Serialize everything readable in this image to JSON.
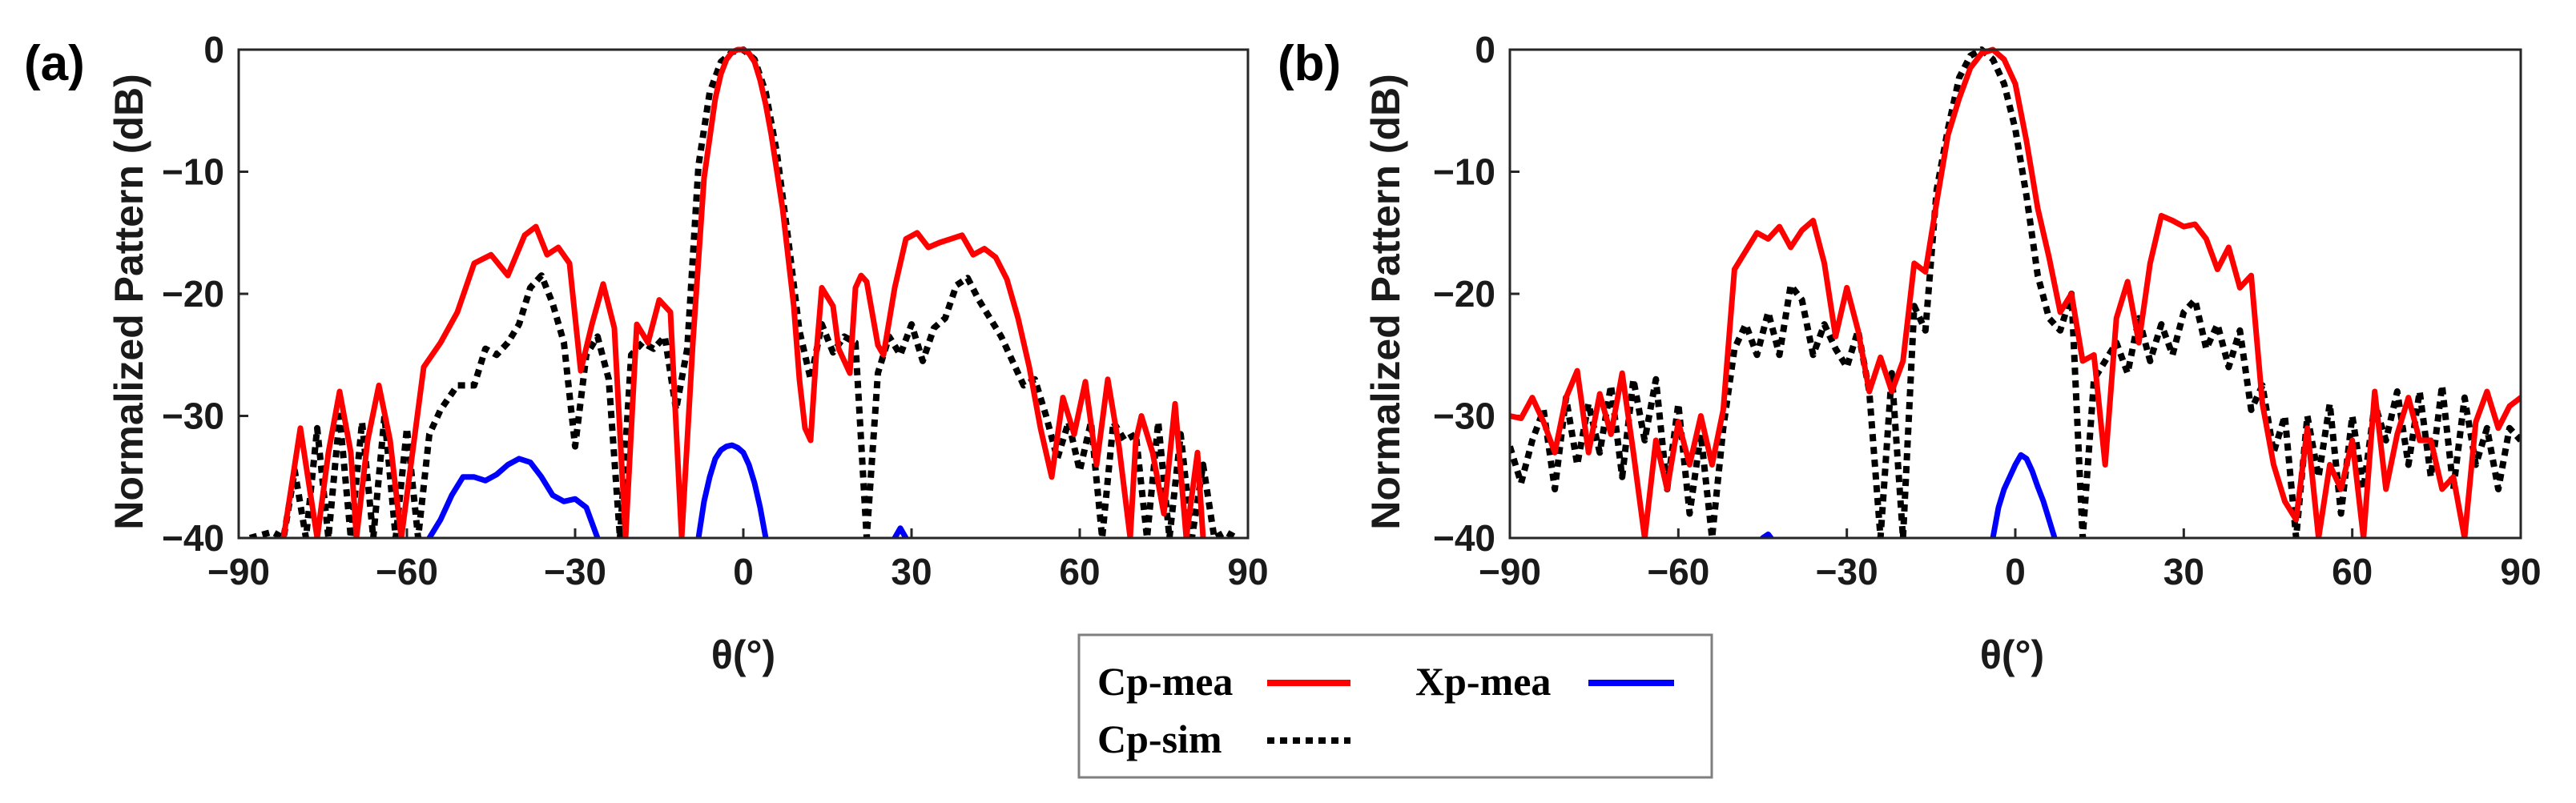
{
  "chart_data": [
    {
      "type": "line",
      "panel_label": "(a)",
      "xlabel": "θ(°)",
      "ylabel": "Normalized Pattern (dB)",
      "xlim": [
        -90,
        90
      ],
      "ylim": [
        -40,
        0
      ],
      "xticks": [
        -90,
        -60,
        -30,
        0,
        30,
        60,
        90
      ],
      "xtick_labels": [
        "−90",
        "−60",
        "−30",
        "0",
        "30",
        "60",
        "90"
      ],
      "yticks": [
        0,
        -10,
        -20,
        -30,
        -40
      ],
      "ytick_labels": [
        "0",
        "−10",
        "−20",
        "−30",
        "−40"
      ],
      "series": [
        {
          "name": "Cp-mea",
          "style": "solid",
          "color": "#ff0000",
          "x": [
            -82,
            -79,
            -76,
            -74,
            -72,
            -70,
            -69,
            -67,
            -65,
            -63,
            -61,
            -59,
            -57,
            -54,
            -51,
            -48,
            -45,
            -42,
            -39,
            -37,
            -35,
            -33,
            -31,
            -29,
            -27,
            -25,
            -23,
            -21,
            -19,
            -17,
            -15,
            -13,
            -11,
            -9,
            -7,
            -5,
            -4,
            -3,
            -2,
            -1,
            0,
            1,
            2,
            3,
            4,
            5,
            6,
            7,
            8,
            9,
            10,
            11,
            12,
            13,
            14,
            16,
            17,
            19,
            20,
            21,
            22,
            24,
            25,
            27,
            29,
            31,
            33,
            35,
            37,
            39,
            41,
            43,
            45,
            47,
            49,
            51,
            53,
            55,
            57,
            59,
            61,
            63,
            65,
            67,
            69,
            70,
            71,
            73,
            75,
            77,
            79,
            81,
            82
          ],
          "y": [
            -40,
            -31,
            -40,
            -33,
            -28,
            -33,
            -40,
            -32,
            -27.5,
            -32,
            -40,
            -33,
            -26,
            -24,
            -21.5,
            -17.5,
            -16.8,
            -18.5,
            -15.2,
            -14.5,
            -16.8,
            -16.2,
            -17.5,
            -26.3,
            -22.5,
            -19.2,
            -22.8,
            -40,
            -22.5,
            -24,
            -20.5,
            -21.5,
            -40,
            -24,
            -10.5,
            -4,
            -2,
            -0.8,
            -0.2,
            0,
            0,
            -0.3,
            -1,
            -2.5,
            -4.5,
            -7,
            -10,
            -13,
            -17,
            -21,
            -27,
            -31,
            -32,
            -25,
            -19.5,
            -21,
            -24.5,
            -26.5,
            -19.5,
            -18.5,
            -19,
            -24.2,
            -25,
            -19.5,
            -15.5,
            -15,
            -16.2,
            -15.8,
            -15.5,
            -15.2,
            -16.8,
            -16.3,
            -17,
            -18.8,
            -22,
            -26,
            -31,
            -35,
            -28.5,
            -31.5,
            -27.2,
            -34,
            -27,
            -32.5,
            -40,
            -32,
            -30,
            -33,
            -38,
            -29,
            -40,
            -33,
            -40
          ]
        },
        {
          "name": "Cp-sim",
          "style": "dotted",
          "color": "#000000",
          "x": [
            -88,
            -84,
            -82,
            -80,
            -78,
            -76,
            -74,
            -72,
            -70,
            -68,
            -66,
            -64,
            -62,
            -60,
            -58,
            -56,
            -54,
            -51,
            -48,
            -46,
            -44,
            -42,
            -40,
            -38,
            -36,
            -34,
            -32,
            -30,
            -28,
            -26,
            -24,
            -22,
            -20,
            -18,
            -16,
            -14,
            -12,
            -10,
            -8,
            -6,
            -4,
            -2,
            0,
            2,
            4,
            6,
            8,
            10,
            12,
            14,
            16,
            18,
            20,
            22,
            24,
            26,
            28,
            30,
            32,
            34,
            36,
            38,
            40,
            42,
            44,
            46,
            48,
            50,
            52,
            54,
            56,
            58,
            60,
            62,
            64,
            66,
            68,
            70,
            72,
            74,
            76,
            78,
            80,
            82,
            84,
            86,
            88
          ],
          "y": [
            -40,
            -39.5,
            -40,
            -34.5,
            -40,
            -31,
            -40,
            -30,
            -40,
            -30.5,
            -40,
            -30,
            -40,
            -31,
            -40,
            -31.5,
            -29.5,
            -27.5,
            -27.5,
            -24.5,
            -25,
            -24,
            -22.5,
            -19.5,
            -18.5,
            -20.8,
            -24,
            -32.5,
            -25,
            -23.5,
            -27,
            -40,
            -25,
            -24,
            -24.5,
            -23.5,
            -29.5,
            -24.5,
            -9.5,
            -3.5,
            -1,
            -0.2,
            0,
            -0.8,
            -3.5,
            -8.5,
            -15.5,
            -23,
            -27,
            -22.5,
            -24.8,
            -23.5,
            -24,
            -40,
            -26.5,
            -23.5,
            -25,
            -22.5,
            -25.5,
            -22.8,
            -22,
            -19.3,
            -18.7,
            -20.5,
            -22,
            -23.5,
            -25.5,
            -27.5,
            -27,
            -30,
            -33.5,
            -30.5,
            -34.5,
            -30.5,
            -40,
            -30.5,
            -32,
            -31.5,
            -40,
            -30.5,
            -40,
            -31.5,
            -40,
            -34,
            -40,
            -39.5,
            -40
          ]
        },
        {
          "name": "Xp-mea",
          "style": "solid",
          "color": "#0000ff",
          "segments": [
            {
              "x": [
                -56,
                -54,
                -52,
                -50,
                -48,
                -46,
                -44,
                -42,
                -40,
                -38,
                -36,
                -34,
                -32,
                -30,
                -28,
                -26
              ],
              "y": [
                -40,
                -38.5,
                -36.5,
                -35,
                -35,
                -35.3,
                -34.8,
                -34,
                -33.5,
                -33.8,
                -35,
                -36.5,
                -37,
                -36.8,
                -37.5,
                -40
              ]
            },
            {
              "x": [
                -8,
                -7,
                -6,
                -5,
                -4,
                -3,
                -2,
                -1,
                0,
                1,
                2,
                3,
                4
              ],
              "y": [
                -40,
                -37,
                -35,
                -33.5,
                -32.8,
                -32.5,
                -32.4,
                -32.6,
                -33,
                -34,
                -35.5,
                -37.5,
                -40
              ]
            },
            {
              "x": [
                27,
                28,
                29
              ],
              "y": [
                -40,
                -39.2,
                -40
              ]
            }
          ]
        }
      ]
    },
    {
      "type": "line",
      "panel_label": "(b)",
      "xlabel": "θ(°)",
      "ylabel": "Normalized Pattern (dB)",
      "xlim": [
        -90,
        90
      ],
      "ylim": [
        -40,
        0
      ],
      "xticks": [
        -90,
        -60,
        -30,
        0,
        30,
        60,
        90
      ],
      "xtick_labels": [
        "−90",
        "−60",
        "−30",
        "0",
        "30",
        "60",
        "90"
      ],
      "yticks": [
        0,
        -10,
        -20,
        -30,
        -40
      ],
      "ytick_labels": [
        "0",
        "−10",
        "−20",
        "−30",
        "−40"
      ],
      "series": [
        {
          "name": "Cp-mea",
          "style": "solid",
          "color": "#ff0000",
          "x": [
            -90,
            -88,
            -86,
            -84,
            -82,
            -80,
            -78,
            -76,
            -74,
            -72,
            -70,
            -68,
            -66,
            -64,
            -62,
            -60,
            -58,
            -56,
            -54,
            -52,
            -50,
            -48,
            -46,
            -44,
            -42,
            -40,
            -38,
            -36,
            -34,
            -32,
            -30,
            -28,
            -26,
            -24,
            -22,
            -20,
            -18,
            -16,
            -14,
            -12,
            -10,
            -8,
            -6,
            -4,
            -2,
            0,
            2,
            4,
            6,
            8,
            10,
            12,
            14,
            16,
            18,
            20,
            22,
            24,
            26,
            28,
            30,
            32,
            34,
            36,
            38,
            40,
            42,
            44,
            46,
            48,
            50,
            52,
            54,
            56,
            58,
            60,
            62,
            64,
            66,
            68,
            70,
            72,
            74,
            76,
            78,
            80,
            82,
            84,
            86,
            88,
            90
          ],
          "y": [
            -30,
            -30.2,
            -28.5,
            -30.5,
            -33,
            -28.5,
            -26.3,
            -33,
            -28.2,
            -31.5,
            -26.5,
            -33,
            -40,
            -32,
            -36,
            -30.5,
            -34,
            -30,
            -34,
            -29.5,
            -18,
            -16.5,
            -15,
            -15.5,
            -14.5,
            -16.2,
            -14.8,
            -14,
            -17.5,
            -23.5,
            -19.5,
            -23,
            -28,
            -25.2,
            -28,
            -25.5,
            -17.5,
            -18.2,
            -12.5,
            -7,
            -4,
            -1.5,
            -0.3,
            0,
            -0.8,
            -2.8,
            -7.5,
            -13,
            -17,
            -21.5,
            -20,
            -25.5,
            -25,
            -34,
            -22,
            -19,
            -24,
            -17.5,
            -13.6,
            -14,
            -14.5,
            -14.3,
            -15.5,
            -18,
            -16.2,
            -19.5,
            -18.5,
            -29,
            -34,
            -37,
            -38.5,
            -31,
            -40,
            -34,
            -36,
            -32,
            -40,
            -28,
            -36,
            -31.5,
            -28.5,
            -32,
            -32,
            -36,
            -35,
            -40,
            -30.5,
            -28,
            -31,
            -29.2,
            -28.5
          ]
        },
        {
          "name": "Cp-sim",
          "style": "dotted",
          "color": "#000000",
          "x": [
            -90,
            -88,
            -86,
            -84,
            -82,
            -80,
            -78,
            -76,
            -74,
            -72,
            -70,
            -68,
            -66,
            -64,
            -62,
            -60,
            -58,
            -56,
            -54,
            -52,
            -50,
            -48,
            -46,
            -44,
            -42,
            -40,
            -38,
            -36,
            -34,
            -32,
            -30,
            -28,
            -26,
            -24,
            -22,
            -20,
            -18,
            -16,
            -14,
            -12,
            -10,
            -8,
            -6,
            -4,
            -2,
            0,
            2,
            4,
            6,
            8,
            10,
            12,
            14,
            16,
            18,
            20,
            22,
            24,
            26,
            28,
            30,
            32,
            34,
            36,
            38,
            40,
            42,
            44,
            46,
            48,
            50,
            52,
            54,
            56,
            58,
            60,
            62,
            64,
            66,
            68,
            70,
            72,
            74,
            76,
            78,
            80,
            82,
            84,
            86,
            88,
            90
          ],
          "y": [
            -32.5,
            -35.5,
            -32,
            -29.5,
            -36,
            -28.5,
            -34,
            -29,
            -33,
            -27.5,
            -35,
            -27,
            -32,
            -27,
            -36,
            -29,
            -38,
            -31.5,
            -40,
            -31,
            -24.5,
            -22.5,
            -25,
            -21.5,
            -25,
            -19.3,
            -20.5,
            -25,
            -22.5,
            -24.5,
            -26,
            -23,
            -28,
            -40,
            -26.5,
            -40,
            -21,
            -23,
            -11.5,
            -6.5,
            -2.3,
            -0.5,
            0,
            -0.8,
            -2.8,
            -6.5,
            -12,
            -18.5,
            -22,
            -23,
            -20,
            -40,
            -27,
            -25.5,
            -24,
            -26.5,
            -22,
            -25.5,
            -22.5,
            -25,
            -21.5,
            -20.5,
            -24.5,
            -22.5,
            -26,
            -23,
            -29.5,
            -27.5,
            -33,
            -30,
            -40,
            -30,
            -35,
            -29,
            -38,
            -30,
            -36,
            -29,
            -32,
            -28,
            -34,
            -28,
            -35,
            -27.5,
            -36,
            -28.5,
            -34,
            -31,
            -36,
            -31,
            -32
          ]
        },
        {
          "name": "Xp-mea",
          "style": "solid",
          "color": "#0000ff",
          "segments": [
            {
              "x": [
                -45,
                -44,
                -43.5
              ],
              "y": [
                -40,
                -39.7,
                -40
              ]
            },
            {
              "x": [
                -4,
                -3,
                -2,
                -1,
                0,
                1,
                2,
                3,
                4,
                5,
                6,
                7
              ],
              "y": [
                -40,
                -37.5,
                -36,
                -35,
                -34,
                -33.2,
                -33.5,
                -34.5,
                -35.8,
                -37,
                -38.5,
                -40
              ]
            }
          ]
        }
      ]
    }
  ],
  "legend": {
    "items": [
      {
        "label": "Cp-mea",
        "color": "#ff0000",
        "style": "solid"
      },
      {
        "label": "Xp-mea",
        "color": "#0000ff",
        "style": "solid"
      },
      {
        "label": "Cp-sim",
        "color": "#000000",
        "style": "dotted"
      }
    ]
  }
}
